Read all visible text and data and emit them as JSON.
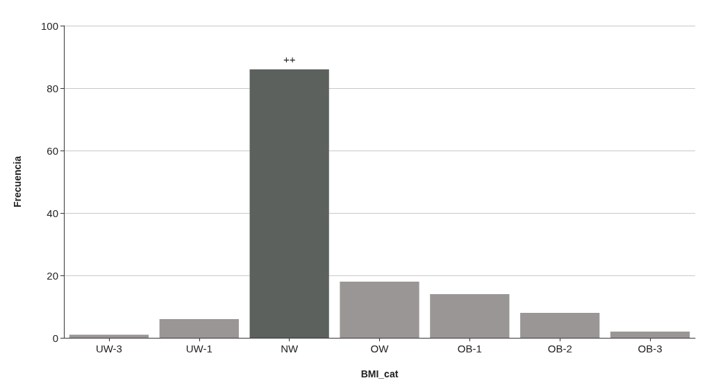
{
  "chart_data": {
    "type": "bar",
    "xlabel": "BMI_cat",
    "ylabel": "Frecuencia",
    "categories": [
      "UW-3",
      "UW-1",
      "NW",
      "OW",
      "OB-1",
      "OB-2",
      "OB-3"
    ],
    "values": [
      1,
      6,
      86,
      18,
      14,
      8,
      2
    ],
    "colors": [
      "#9a9695",
      "#9a9695",
      "#5d615e",
      "#9a9695",
      "#9a9695",
      "#9a9695",
      "#9a9695"
    ],
    "ylim": [
      0,
      100
    ],
    "yticks": [
      0,
      20,
      40,
      60,
      80,
      100
    ],
    "grid": "y",
    "annotations": [
      {
        "text": "++",
        "x": "NW",
        "y": 86
      }
    ]
  }
}
